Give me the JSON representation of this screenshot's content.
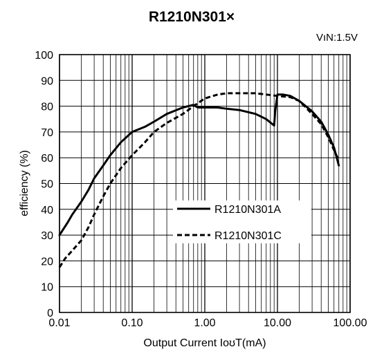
{
  "chart_data": {
    "type": "line",
    "title": "R1210N301×",
    "condition": "VıN:1.5V",
    "xlabel": "Output Current IоʊT(mA)",
    "ylabel": "efficiency (%)",
    "x_scale": "log",
    "xlim": [
      0.01,
      100
    ],
    "ylim": [
      0,
      100
    ],
    "x_tick_labels": [
      "0.01",
      "0.10",
      "1.00",
      "10.00",
      "100.00"
    ],
    "x_tick_values": [
      0.01,
      0.1,
      1,
      10,
      100
    ],
    "y_tick_labels": [
      "0",
      "10",
      "20",
      "30",
      "40",
      "50",
      "60",
      "70",
      "80",
      "90",
      "100"
    ],
    "y_tick_values": [
      0,
      10,
      20,
      30,
      40,
      50,
      60,
      70,
      80,
      90,
      100
    ],
    "grid": true,
    "legend_position": "center-right",
    "series": [
      {
        "name": "R1210N301A",
        "style": "solid",
        "color": "#000000",
        "x": [
          0.01,
          0.013,
          0.015,
          0.02,
          0.025,
          0.03,
          0.04,
          0.05,
          0.07,
          0.1,
          0.15,
          0.2,
          0.3,
          0.5,
          0.7,
          0.8,
          1.0,
          1.5,
          2,
          3,
          5,
          7,
          9,
          9.3,
          10,
          12,
          15,
          20,
          30,
          40,
          50,
          60,
          70
        ],
        "y": [
          30,
          35,
          38,
          43,
          47.5,
          52,
          57,
          61,
          66,
          70,
          72,
          74,
          77,
          79.5,
          80.5,
          79.5,
          79.5,
          79.5,
          79,
          78.5,
          77,
          75,
          72.5,
          78,
          84.5,
          84.5,
          84,
          82,
          78,
          74,
          69,
          64,
          57
        ]
      },
      {
        "name": "R1210N301C",
        "style": "dashed",
        "color": "#000000",
        "x": [
          0.01,
          0.012,
          0.015,
          0.02,
          0.025,
          0.03,
          0.04,
          0.05,
          0.07,
          0.1,
          0.15,
          0.2,
          0.3,
          0.5,
          0.7,
          1.0,
          1.5,
          2,
          3,
          5,
          7,
          10,
          15,
          20,
          30,
          40,
          50,
          60,
          70
        ],
        "y": [
          17.5,
          21,
          24,
          28,
          33,
          38,
          45,
          50,
          56,
          61,
          66,
          70,
          73.5,
          77,
          80,
          83,
          84.5,
          85,
          85,
          85,
          84.5,
          84,
          83.5,
          82,
          77,
          73,
          68,
          63,
          59
        ]
      }
    ]
  }
}
